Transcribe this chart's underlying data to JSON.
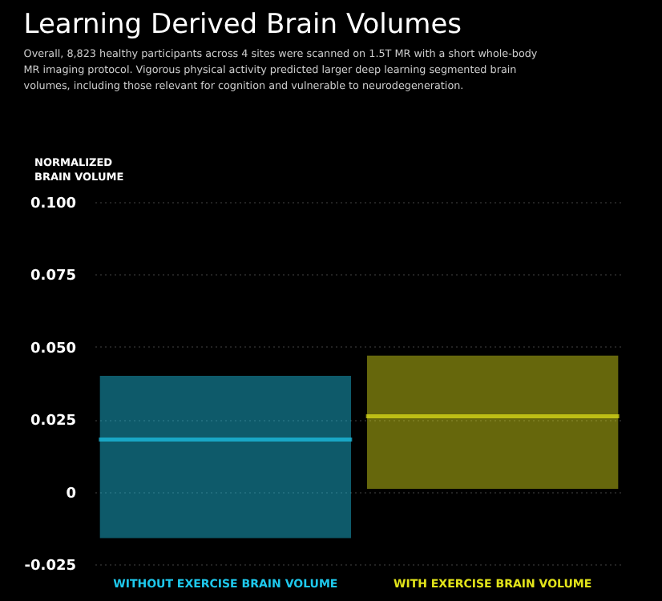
{
  "chart_data": {
    "type": "box",
    "title": "Learning Derived Brain Volumes",
    "subtitle": "Overall, 8,823 healthy participants across 4 sites were scanned on 1.5T MR with a short whole-body MR imaging protocol. Vigorous physical activity predicted larger deep learning segmented brain volumes, including those relevant for cognition and vulnerable to neurodegeneration.",
    "ylabel": "NORMALIZED BRAIN VOLUME",
    "categories": [
      "WITHOUT EXERCISE BRAIN VOLUME",
      "WITH EXERCISE BRAIN VOLUME"
    ],
    "boxes": [
      {
        "low": -0.016,
        "q1": -0.016,
        "median": 0.018,
        "q3": 0.04,
        "high": 0.04
      },
      {
        "low": 0.001,
        "q1": 0.001,
        "median": 0.026,
        "q3": 0.047,
        "high": 0.047
      }
    ],
    "colors": [
      "#1ec8ec",
      "#e2e41a"
    ],
    "ylim": [
      -0.025,
      0.1
    ],
    "yticks": [
      {
        "value": -0.025,
        "label": "-0.025"
      },
      0,
      0.025,
      {
        "value": 0.05,
        "label": "0.050"
      },
      0.075,
      {
        "value": 0.1,
        "label": "0.100"
      }
    ],
    "grid": true
  }
}
